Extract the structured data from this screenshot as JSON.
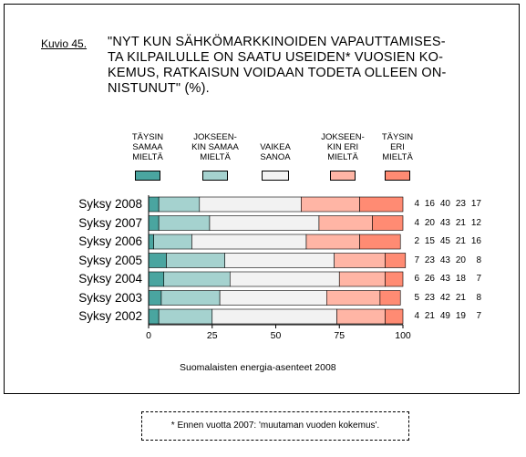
{
  "figure": {
    "label": "Kuvio 45.",
    "title_lines": [
      "\"NYT KUN SÄHKÖMARKKINOIDEN VAPAUTTAMISES-",
      "TA KILPAILULLE ON SAATU USEIDEN* VUOSIEN KO-",
      "KEMUS, RATKAISUN VOIDAAN TODETA OLLEEN ON-",
      "NISTUNUT\" (%)."
    ],
    "source": "Suomalaisten energia-asenteet 2008",
    "footnote": "* Ennen vuotta 2007: 'muutaman vuoden kokemus'."
  },
  "colors": {
    "s1": "#4aa5a0",
    "s2": "#a5d2cf",
    "s3": "#f2f2f2",
    "s4": "#ffb5a5",
    "s5": "#ff8b73"
  },
  "chart_data": {
    "type": "bar",
    "orientation": "horizontal",
    "stacked": true,
    "categories": [
      "Syksy 2008",
      "Syksy 2007",
      "Syksy 2006",
      "Syksy 2005",
      "Syksy 2004",
      "Syksy 2003",
      "Syksy 2002"
    ],
    "series": [
      {
        "name": "TÄYSIN SAMAA MIELTÄ",
        "label_lines": [
          "TÄYSIN",
          "SAMAA",
          "MIELTÄ"
        ],
        "values": [
          4,
          4,
          2,
          7,
          6,
          5,
          4
        ]
      },
      {
        "name": "JOKSEEN-KIN SAMAA MIELTÄ",
        "label_lines": [
          "JOKSEEN-",
          "KIN SAMAA",
          "MIELTÄ"
        ],
        "values": [
          16,
          20,
          15,
          23,
          26,
          23,
          21
        ]
      },
      {
        "name": "VAIKEA SANOA",
        "label_lines": [
          "VAIKEA",
          "SANOA"
        ],
        "values": [
          40,
          43,
          45,
          43,
          43,
          42,
          49
        ]
      },
      {
        "name": "JOKSEEN-KIN ERI MIELTÄ",
        "label_lines": [
          "JOKSEEN-",
          "KIN ERI",
          "MIELTÄ"
        ],
        "values": [
          23,
          21,
          21,
          20,
          18,
          21,
          19
        ]
      },
      {
        "name": "TÄYSIN ERI MIELTÄ",
        "label_lines": [
          "TÄYSIN",
          "ERI",
          "MIELTÄ"
        ],
        "values": [
          17,
          12,
          16,
          8,
          7,
          8,
          7
        ]
      }
    ],
    "xlim": [
      0,
      100
    ],
    "xticks": [
      0,
      25,
      50,
      75,
      100
    ],
    "grid": false,
    "legend_position": "top"
  }
}
